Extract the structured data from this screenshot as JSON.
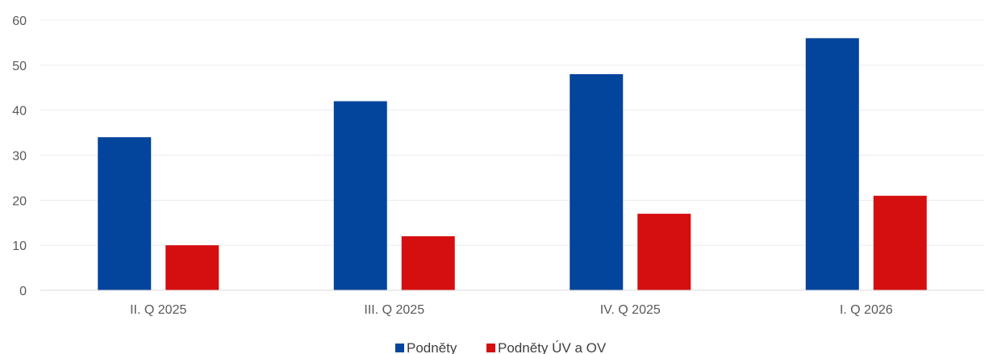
{
  "chart_data": {
    "type": "bar",
    "categories": [
      "II. Q 2025",
      "III. Q 2025",
      "IV. Q 2025",
      "I. Q 2026"
    ],
    "series": [
      {
        "name": "Podněty",
        "values": [
          34,
          42,
          48,
          56
        ],
        "color": "#03449C"
      },
      {
        "name": "Podněty ÚV a OV",
        "values": [
          10,
          12,
          17,
          21
        ],
        "color": "#D50E0F"
      }
    ],
    "title": "",
    "xlabel": "",
    "ylabel": "",
    "ylim": [
      0,
      60
    ],
    "yticks": [
      0,
      10,
      20,
      30,
      40,
      50,
      60
    ],
    "grid": true,
    "legend": "bottom-center"
  }
}
